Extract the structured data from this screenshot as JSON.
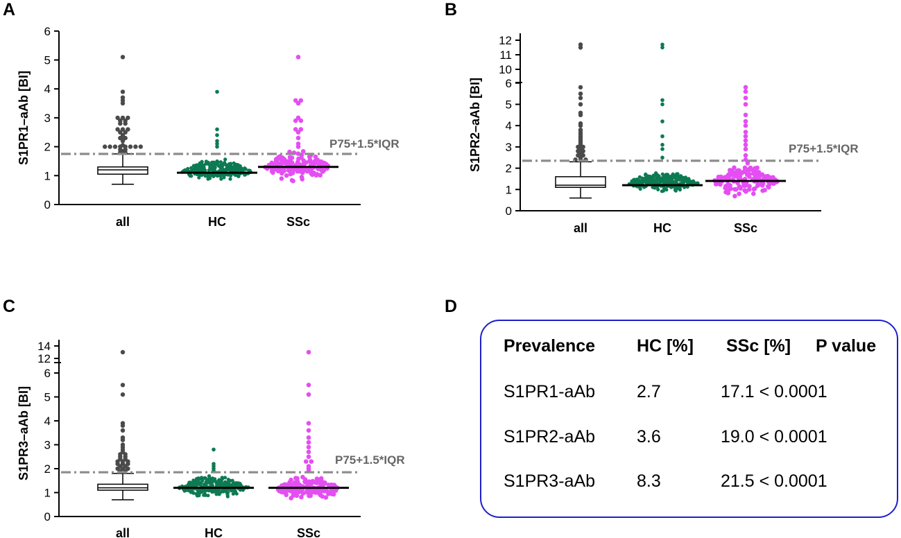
{
  "colors": {
    "all": "#4a4a4a",
    "HC": "#0d7a52",
    "SSc": "#e44ef2",
    "cutoff": "#8c8c8c",
    "box_border": "#1e1ecc"
  },
  "chart_data": [
    {
      "panel": "A",
      "type": "scatter",
      "ylabel": "S1PR1–aAb [BI]",
      "categories": [
        "all",
        "HC",
        "SSc"
      ],
      "ylim": [
        0,
        6
      ],
      "yticks": [
        "0",
        "1",
        "2",
        "3",
        "4",
        "5",
        "6"
      ],
      "cutoff": {
        "label": "P75+1.5*IQR",
        "value": 1.75
      },
      "box": {
        "min": 0.7,
        "q1": 1.05,
        "median": 1.2,
        "q3": 1.3,
        "whisker_high": 1.75
      },
      "medians": {
        "HC": 1.1,
        "SSc": 1.3
      },
      "outliers_all": [
        1.8,
        1.8,
        1.85,
        1.9,
        1.9,
        2.0,
        2.0,
        2.0,
        2.0,
        2.0,
        2.0,
        2.0,
        2.0,
        2.05,
        2.2,
        2.25,
        2.3,
        2.3,
        2.4,
        2.5,
        2.5,
        2.6,
        2.6,
        2.6,
        2.8,
        2.8,
        2.9,
        2.9,
        3.0,
        3.0,
        3.0,
        3.5,
        3.6,
        3.7,
        3.9,
        5.1
      ],
      "hc_max": [
        2.0,
        2.1,
        2.2,
        2.4,
        2.6,
        3.9
      ],
      "ssc_high": [
        2.0,
        2.1,
        2.3,
        2.5,
        2.6,
        2.6,
        2.9,
        2.9,
        3.0,
        3.5,
        3.6,
        3.6,
        5.1
      ]
    },
    {
      "panel": "B",
      "type": "scatter",
      "ylabel": "S1PR2–aAb [BI]",
      "categories": [
        "all",
        "HC",
        "SSc"
      ],
      "ylim_lower": [
        0,
        6
      ],
      "ylim_upper": [
        10,
        12
      ],
      "yticks": [
        "0",
        "1",
        "2",
        "3",
        "4",
        "5",
        "6",
        "10",
        "11",
        "12"
      ],
      "cutoff": {
        "label": "P75+1.5*IQR",
        "value": 2.35
      },
      "box": {
        "min": 0.6,
        "q1": 1.1,
        "median": 1.2,
        "q3": 1.6,
        "whisker_high": 2.3
      },
      "medians": {
        "HC": 1.2,
        "SSc": 1.4
      },
      "outliers_all": [
        2.4,
        2.4,
        2.4,
        2.5,
        2.6,
        2.6,
        2.7,
        2.8,
        2.8,
        2.9,
        3.0,
        3.0,
        3.1,
        3.2,
        3.3,
        3.4,
        3.5,
        3.6,
        3.7,
        3.8,
        4.0,
        4.1,
        4.5,
        4.6,
        5.0,
        5.3,
        5.5,
        5.8,
        11.5,
        11.7
      ],
      "hc_max": [
        2.5,
        2.9,
        3.1,
        3.5,
        4.2,
        5.0,
        5.2,
        11.5,
        11.7
      ],
      "ssc_high": [
        2.4,
        2.6,
        2.9,
        3.1,
        3.3,
        3.5,
        3.7,
        4.0,
        4.2,
        4.5,
        5.0,
        5.3,
        5.6,
        5.8
      ]
    },
    {
      "panel": "C",
      "type": "scatter",
      "ylabel": "S1PR3–aAb [BI]",
      "categories": [
        "all",
        "HC",
        "SSc"
      ],
      "ylim_lower": [
        0,
        6
      ],
      "ylim_upper": [
        12,
        14
      ],
      "yticks": [
        "0",
        "1",
        "2",
        "3",
        "4",
        "5",
        "6",
        "12",
        "14"
      ],
      "cutoff": {
        "label": "P75+1.5*IQR",
        "value": 1.85
      },
      "box": {
        "min": 0.7,
        "q1": 1.1,
        "median": 1.2,
        "q3": 1.35,
        "whisker_high": 1.8
      },
      "medians": {
        "HC": 1.2,
        "SSc": 1.2
      },
      "outliers_all": [
        1.9,
        1.9,
        2.0,
        2.0,
        2.0,
        2.1,
        2.1,
        2.2,
        2.2,
        2.2,
        2.3,
        2.3,
        2.3,
        2.4,
        2.4,
        2.5,
        2.5,
        2.6,
        2.6,
        2.7,
        2.8,
        2.9,
        3.0,
        3.2,
        3.3,
        3.6,
        3.8,
        3.9,
        5.1,
        5.5,
        13.0
      ],
      "hc_max": [
        1.9,
        2.0,
        2.1,
        2.2,
        2.8
      ],
      "ssc_high": [
        1.9,
        2.0,
        2.1,
        2.3,
        2.3,
        2.5,
        2.7,
        2.9,
        3.1,
        3.3,
        3.6,
        3.9,
        5.1,
        5.5,
        13.0
      ]
    }
  ],
  "panels": {
    "a": "A",
    "b": "B",
    "c": "C",
    "d": "D"
  },
  "table": {
    "headers": [
      "Prevalence",
      "HC [%]",
      "SSc [%]",
      "P value"
    ],
    "rows": [
      {
        "name": "S1PR1-aAb",
        "hc": "2.7",
        "ssc_p": "17.1 < 0.0001"
      },
      {
        "name": "S1PR2-aAb",
        "hc": "3.6",
        "ssc_p": "19.0 < 0.0001"
      },
      {
        "name": "S1PR3-aAb",
        "hc": "8.3",
        "ssc_p": "21.5 < 0.0001"
      }
    ]
  }
}
